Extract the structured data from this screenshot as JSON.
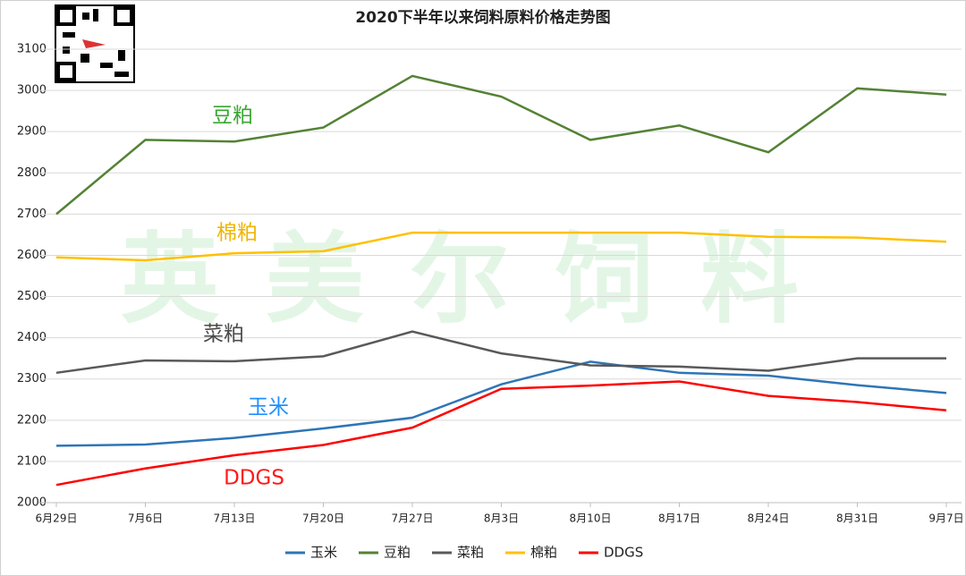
{
  "chart_data": {
    "type": "line",
    "title": "2020下半年以来饲料原料价格走势图",
    "categories": [
      "6月29日",
      "7月6日",
      "7月13日",
      "7月20日",
      "7月27日",
      "8月3日",
      "8月10日",
      "8月17日",
      "8月24日",
      "8月31日",
      "9月7日"
    ],
    "series": [
      {
        "name": "玉米",
        "color": "#2e75b6",
        "values": [
          2138,
          2141,
          2157,
          2180,
          2206,
          2287,
          2342,
          2315,
          2308,
          2285,
          2266
        ]
      },
      {
        "name": "豆粕",
        "color": "#548235",
        "values": [
          2700,
          2880,
          2876,
          2910,
          3035,
          2985,
          2880,
          2915,
          2850,
          3005,
          2990
        ]
      },
      {
        "name": "菜粕",
        "color": "#595959",
        "values": [
          2315,
          2345,
          2343,
          2355,
          2415,
          2362,
          2333,
          2330,
          2320,
          2350,
          2350
        ]
      },
      {
        "name": "棉粕",
        "color": "#ffc000",
        "values": [
          2595,
          2588,
          2605,
          2610,
          2655,
          2655,
          2655,
          2655,
          2645,
          2643,
          2633
        ]
      },
      {
        "name": "DDGS",
        "color": "#ff0000",
        "values": [
          2043,
          2083,
          2115,
          2140,
          2182,
          2276,
          2284,
          2294,
          2259,
          2244,
          2224
        ]
      }
    ],
    "ylim": [
      2000,
      3100
    ],
    "yticks": [
      2000,
      2100,
      2200,
      2300,
      2400,
      2500,
      2600,
      2700,
      2800,
      2900,
      3000,
      3100
    ],
    "grid": true,
    "legend": "bottom",
    "annotations": [
      {
        "text": "豆粕",
        "color": "#3aa531"
      },
      {
        "text": "棉粕",
        "color": "#f0b400"
      },
      {
        "text": "菜粕",
        "color": "#4a4a4a"
      },
      {
        "text": "玉米",
        "color": "#1e90ff"
      },
      {
        "text": "DDGS",
        "color": "#ff1a1a"
      }
    ],
    "watermark": "英美尔饲料"
  }
}
